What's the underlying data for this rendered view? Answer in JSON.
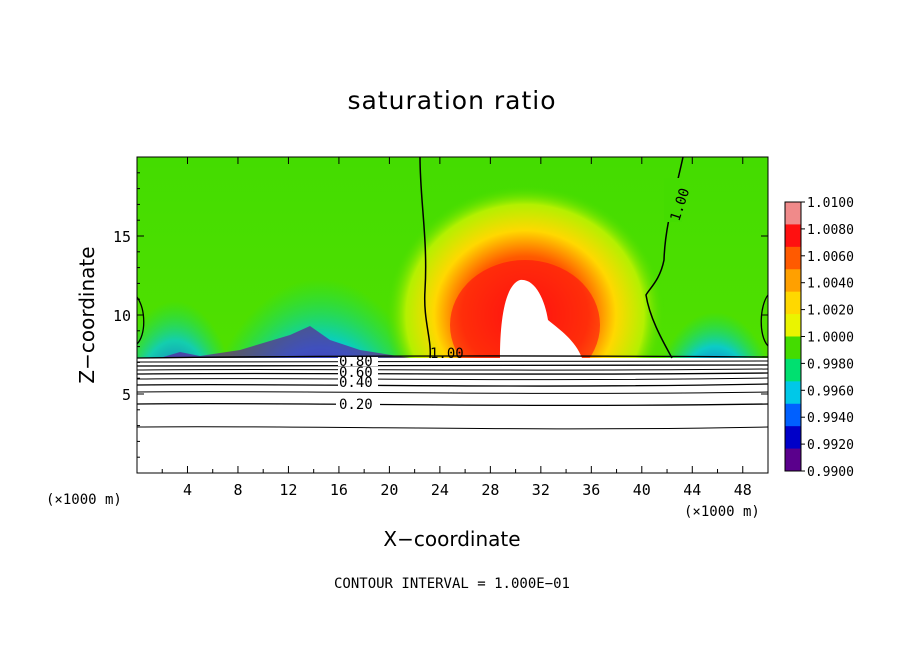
{
  "chart_data": {
    "type": "heatmap",
    "title": "saturation ratio",
    "xlabel": "X−coordinate",
    "ylabel": "Z−coordinate",
    "x_unit_left": "(×1000 m)",
    "x_unit_right": "(×1000 m)",
    "xlim": [
      0,
      50
    ],
    "ylim": [
      0,
      20
    ],
    "x_ticks": [
      4,
      8,
      12,
      16,
      20,
      24,
      28,
      32,
      36,
      40,
      44,
      48
    ],
    "y_ticks": [
      5,
      10,
      15
    ],
    "footer": "CONTOUR INTERVAL = 1.000E−01",
    "colorbar": {
      "levels": [
        "1.0100",
        "1.0080",
        "1.0060",
        "1.0040",
        "1.0020",
        "1.0000",
        "0.9980",
        "0.9960",
        "0.9940",
        "0.9920",
        "0.9900"
      ],
      "colors": [
        "#f08a8a",
        "#ff1010",
        "#ff5a00",
        "#ffa000",
        "#ffd800",
        "#eaf400",
        "#44dc00",
        "#00e070",
        "#00c8e8",
        "#0060ff",
        "#0000c8",
        "#5a008c"
      ]
    },
    "contour_labels": [
      "1.00",
      "1.00",
      "0.80",
      "0.60",
      "0.40",
      "0.20"
    ],
    "grid": false
  }
}
